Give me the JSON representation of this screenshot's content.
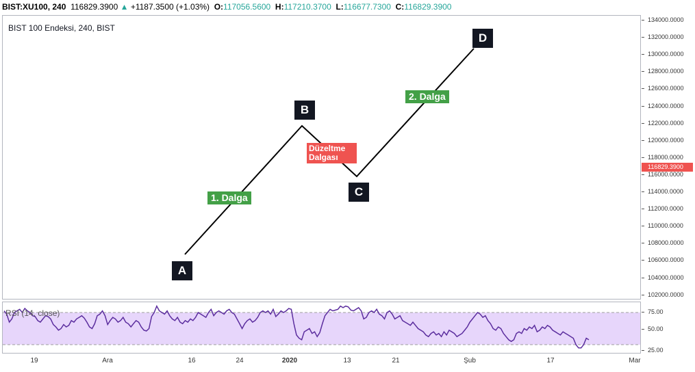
{
  "header": {
    "symbol": "BIST:XU100, 240",
    "last": "116829.3900",
    "change_arrow": "▲",
    "change": "+1187.3500 (+1.03%)",
    "open_label": "O:",
    "open": "117056.5600",
    "high_label": "H:",
    "high": "117210.3700",
    "low_label": "L:",
    "low": "116677.7300",
    "close_label": "C:",
    "close": "116829.3900"
  },
  "chart": {
    "title": "BIST 100 Endeksi, 240, BIST",
    "last_price": "116829.3900",
    "y_ticks": [
      "134000.0000",
      "132000.0000",
      "130000.0000",
      "128000.0000",
      "126000.0000",
      "124000.0000",
      "122000.0000",
      "120000.0000",
      "118000.0000",
      "116000.0000",
      "114000.0000",
      "112000.0000",
      "110000.0000",
      "108000.0000",
      "106000.0000",
      "104000.0000",
      "102000.0000"
    ],
    "points": {
      "a": "A",
      "b": "B",
      "c": "C",
      "d": "D"
    },
    "wave1": "1. Dalga",
    "wave2": "2. Dalga",
    "correction_line1": "Düzeltme",
    "correction_line2": "Dalgası",
    "colors": {
      "line": "#000000",
      "wave": "#43a047",
      "correction": "#ef5350",
      "point_bg": "#131722",
      "price_tag": "#ef5350"
    }
  },
  "rsi": {
    "label": "RSI (14, close)",
    "y_ticks": [
      "75.00",
      "50.00",
      "25.00"
    ],
    "line_color": "#5b2d9e",
    "band_color": "#e7d6fb",
    "values": [
      72,
      68,
      58,
      62,
      70,
      72,
      74,
      70,
      75,
      72,
      70,
      66,
      65,
      60,
      58,
      62,
      66,
      65,
      62,
      55,
      52,
      48,
      50,
      55,
      52,
      54,
      60,
      58,
      62,
      64,
      66,
      63,
      58,
      52,
      50,
      56,
      66,
      68,
      72,
      66,
      55,
      60,
      64,
      62,
      58,
      60,
      64,
      58,
      56,
      52,
      56,
      60,
      58,
      52,
      48,
      47,
      50,
      65,
      70,
      78,
      72,
      70,
      68,
      72,
      66,
      62,
      60,
      64,
      58,
      56,
      60,
      58,
      62,
      60,
      64,
      70,
      68,
      66,
      64,
      70,
      74,
      66,
      70,
      72,
      70,
      68,
      72,
      74,
      70,
      68,
      62,
      56,
      50,
      56,
      60,
      62,
      58,
      60,
      64,
      70,
      72,
      70,
      72,
      68,
      74,
      65,
      68,
      72,
      70,
      72,
      75,
      74,
      56,
      42,
      38,
      36,
      46,
      48,
      50,
      44,
      46,
      40,
      45,
      56,
      66,
      70,
      74,
      72,
      73,
      74,
      78,
      76,
      78,
      77,
      73,
      72,
      74,
      76,
      72,
      62,
      64,
      70,
      72,
      70,
      74,
      68,
      66,
      62,
      70,
      72,
      68,
      62,
      64,
      66,
      60,
      58,
      56,
      54,
      58,
      54,
      50,
      48,
      46,
      42,
      40,
      44,
      46,
      42,
      44,
      40,
      46,
      42,
      48,
      46,
      44,
      40,
      42,
      44,
      48,
      52,
      58,
      62,
      66,
      70,
      68,
      64,
      66,
      60,
      56,
      50,
      48,
      52,
      50,
      44,
      40,
      36,
      34,
      36,
      44,
      46,
      44,
      50,
      48,
      52,
      50,
      54,
      46,
      48,
      52,
      50,
      54,
      52,
      48,
      46,
      44,
      42,
      46,
      44,
      42,
      40,
      38,
      30,
      26,
      26,
      30,
      38,
      36
    ]
  },
  "x_axis": {
    "labels": [
      "19",
      "Ara",
      "16",
      "24",
      "2020",
      "13",
      "21",
      "Şub",
      "17",
      "Mar"
    ]
  }
}
